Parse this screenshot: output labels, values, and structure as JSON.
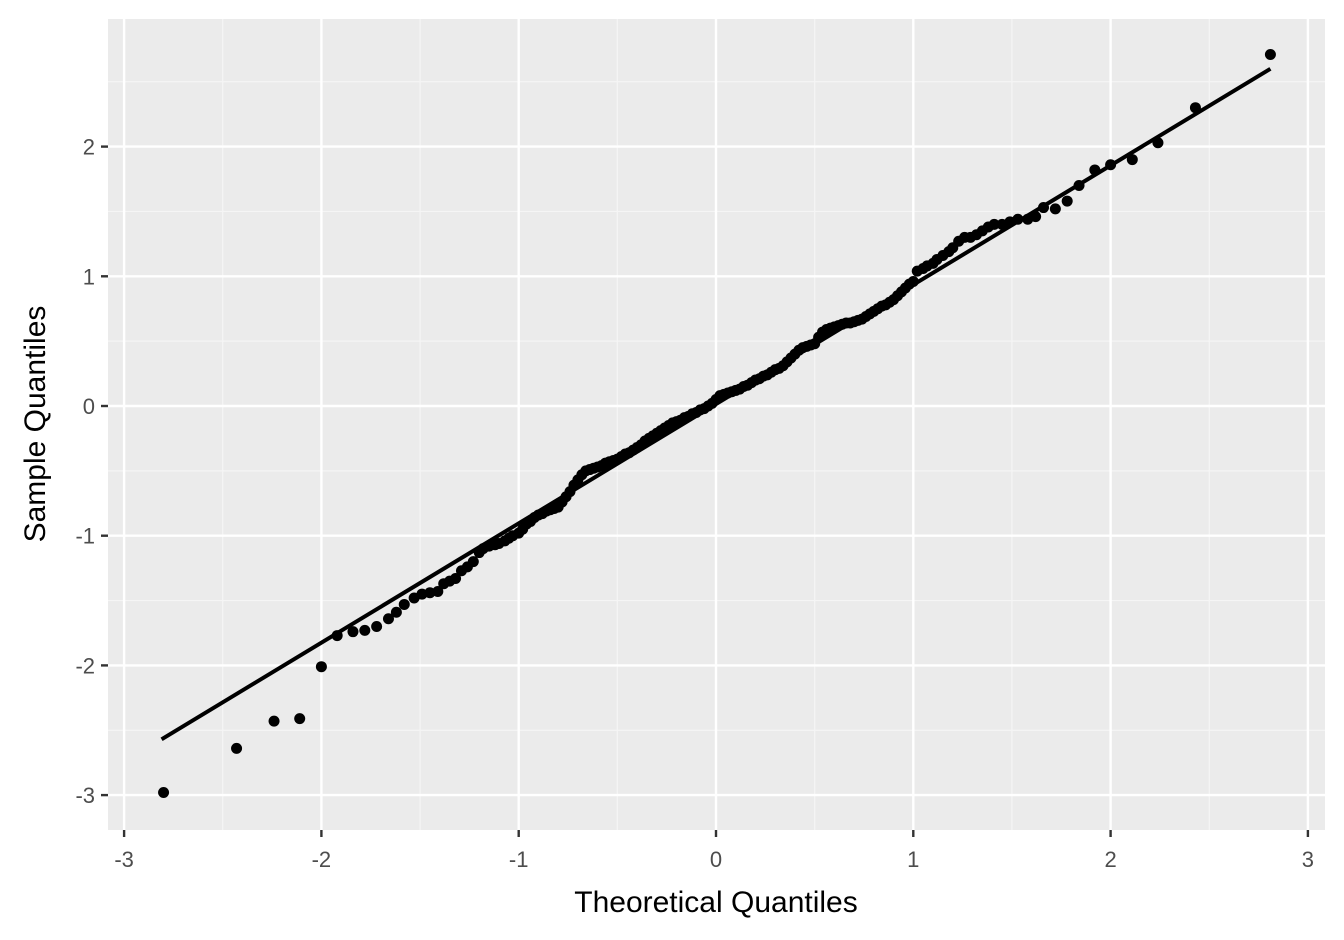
{
  "chart_data": {
    "type": "scatter",
    "title": "",
    "xlabel": "Theoretical Quantiles",
    "ylabel": "Sample Quantiles",
    "xlim": [
      -3.08,
      3.08
    ],
    "ylim": [
      -3.27,
      2.98
    ],
    "x_ticks": [
      -3,
      -2,
      -1,
      0,
      1,
      2,
      3
    ],
    "x_tick_labels": [
      "-3",
      "-2",
      "-1",
      "0",
      "1",
      "2",
      "3"
    ],
    "y_ticks": [
      -3,
      -2,
      -1,
      0,
      1,
      2
    ],
    "y_tick_labels": [
      "-3",
      "-2",
      "-1",
      "0",
      "1",
      "2"
    ],
    "grid": true,
    "legend": null,
    "colors": {
      "panel_background": "#ebebeb",
      "grid_major": "#ffffff",
      "grid_minor": "#f5f5f5",
      "points": "#000000",
      "reference_line": "#000000",
      "tick_label": "#4d4d4d",
      "axis_title": "#000000"
    },
    "reference_line": {
      "x": [
        -2.81,
        2.81
      ],
      "y": [
        -2.57,
        2.6
      ]
    },
    "series": [
      {
        "name": "sample",
        "x": [
          -2.8,
          -2.43,
          -2.24,
          -2.11,
          -2.0,
          -1.92,
          -1.84,
          -1.78,
          -1.72,
          -1.66,
          -1.62,
          -1.58,
          -1.53,
          -1.49,
          -1.45,
          -1.41,
          -1.38,
          -1.35,
          -1.32,
          -1.29,
          -1.26,
          -1.23,
          -1.2,
          -1.18,
          -1.15,
          -1.12,
          -1.1,
          -1.07,
          -1.05,
          -1.03,
          -1.0,
          -0.98,
          -0.96,
          -0.94,
          -0.92,
          -0.9,
          -0.88,
          -0.86,
          -0.84,
          -0.82,
          -0.8,
          -0.78,
          -0.76,
          -0.74,
          -0.72,
          -0.7,
          -0.68,
          -0.66,
          -0.64,
          -0.62,
          -0.6,
          -0.58,
          -0.56,
          -0.54,
          -0.52,
          -0.5,
          -0.48,
          -0.46,
          -0.44,
          -0.42,
          -0.4,
          -0.38,
          -0.36,
          -0.34,
          -0.32,
          -0.3,
          -0.28,
          -0.26,
          -0.24,
          -0.22,
          -0.2,
          -0.18,
          -0.16,
          -0.14,
          -0.12,
          -0.1,
          -0.08,
          -0.06,
          -0.04,
          -0.02,
          0.0,
          0.02,
          0.04,
          0.06,
          0.08,
          0.1,
          0.12,
          0.14,
          0.16,
          0.18,
          0.2,
          0.22,
          0.24,
          0.26,
          0.28,
          0.3,
          0.32,
          0.34,
          0.36,
          0.38,
          0.4,
          0.42,
          0.44,
          0.46,
          0.48,
          0.5,
          0.52,
          0.54,
          0.56,
          0.58,
          0.6,
          0.62,
          0.64,
          0.66,
          0.68,
          0.7,
          0.72,
          0.74,
          0.76,
          0.78,
          0.8,
          0.82,
          0.84,
          0.86,
          0.88,
          0.9,
          0.92,
          0.94,
          0.96,
          0.98,
          1.0,
          1.02,
          1.05,
          1.07,
          1.1,
          1.12,
          1.15,
          1.18,
          1.2,
          1.23,
          1.26,
          1.29,
          1.32,
          1.35,
          1.38,
          1.41,
          1.45,
          1.49,
          1.53,
          1.58,
          1.62,
          1.66,
          1.72,
          1.78,
          1.84,
          1.92,
          2.0,
          2.11,
          2.24,
          2.43,
          2.81
        ],
        "y": [
          -2.98,
          -2.64,
          -2.43,
          -2.41,
          -2.01,
          -1.77,
          -1.74,
          -1.73,
          -1.7,
          -1.64,
          -1.59,
          -1.53,
          -1.48,
          -1.45,
          -1.44,
          -1.43,
          -1.37,
          -1.35,
          -1.33,
          -1.27,
          -1.24,
          -1.2,
          -1.13,
          -1.1,
          -1.08,
          -1.07,
          -1.06,
          -1.04,
          -1.02,
          -1.0,
          -0.98,
          -0.95,
          -0.91,
          -0.89,
          -0.86,
          -0.84,
          -0.83,
          -0.81,
          -0.8,
          -0.79,
          -0.78,
          -0.74,
          -0.7,
          -0.66,
          -0.61,
          -0.57,
          -0.53,
          -0.5,
          -0.49,
          -0.48,
          -0.47,
          -0.46,
          -0.44,
          -0.43,
          -0.42,
          -0.41,
          -0.39,
          -0.37,
          -0.36,
          -0.34,
          -0.32,
          -0.3,
          -0.27,
          -0.25,
          -0.23,
          -0.21,
          -0.19,
          -0.17,
          -0.15,
          -0.13,
          -0.12,
          -0.11,
          -0.09,
          -0.08,
          -0.06,
          -0.05,
          -0.03,
          -0.02,
          0.0,
          0.02,
          0.05,
          0.08,
          0.09,
          0.1,
          0.11,
          0.12,
          0.13,
          0.15,
          0.16,
          0.18,
          0.2,
          0.21,
          0.23,
          0.24,
          0.26,
          0.28,
          0.29,
          0.31,
          0.34,
          0.37,
          0.4,
          0.43,
          0.45,
          0.46,
          0.47,
          0.48,
          0.53,
          0.57,
          0.59,
          0.6,
          0.61,
          0.62,
          0.63,
          0.64,
          0.64,
          0.65,
          0.66,
          0.67,
          0.69,
          0.71,
          0.73,
          0.75,
          0.77,
          0.78,
          0.8,
          0.82,
          0.85,
          0.88,
          0.91,
          0.94,
          0.96,
          1.04,
          1.06,
          1.08,
          1.1,
          1.13,
          1.16,
          1.19,
          1.22,
          1.27,
          1.3,
          1.3,
          1.32,
          1.35,
          1.38,
          1.4,
          1.4,
          1.42,
          1.44,
          1.44,
          1.46,
          1.53,
          1.52,
          1.58,
          1.7,
          1.82,
          1.86,
          1.9,
          2.03,
          2.3,
          2.71
        ]
      }
    ]
  }
}
